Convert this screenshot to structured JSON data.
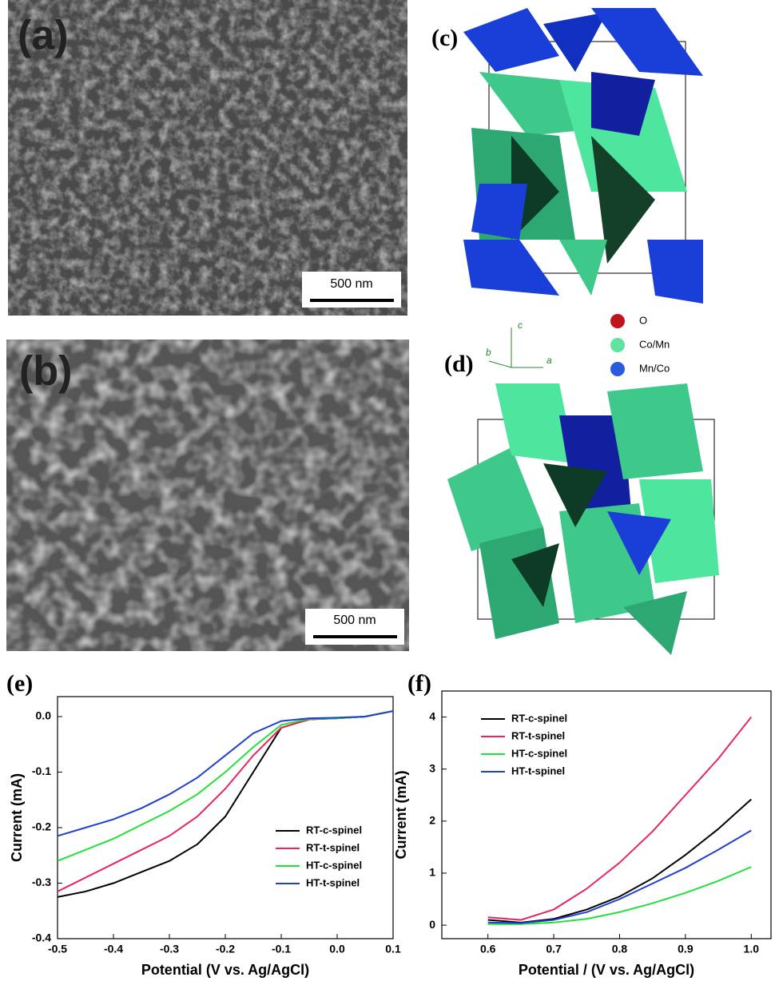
{
  "panels": {
    "a": {
      "label": "(a)",
      "scale_bar": "500 nm"
    },
    "b": {
      "label": "(b)",
      "scale_bar": "500 nm"
    },
    "c": {
      "label": "(c)"
    },
    "d": {
      "label": "(d)"
    },
    "atoms": [
      "O",
      "Co/Mn",
      "Mn/Co"
    ],
    "axes": [
      "c",
      "b",
      "a"
    ]
  },
  "chart_data": [
    {
      "type": "line",
      "panel_label": "(e)",
      "xlabel": "Potential (V vs. Ag/AgCl)",
      "ylabel": "Current (mA)",
      "x": [
        -0.5,
        -0.45,
        -0.4,
        -0.35,
        -0.3,
        -0.25,
        -0.2,
        -0.15,
        -0.1,
        -0.05,
        0,
        0.05,
        0.1
      ],
      "xlim": [
        -0.5,
        0.1
      ],
      "xticks": [
        -0.5,
        -0.4,
        -0.3,
        -0.2,
        -0.1,
        {
          "value": 0,
          "label": "0.0"
        },
        0.1
      ],
      "ylim": [
        -0.4,
        0.036
      ],
      "yticks": [
        -0.4,
        -0.3,
        -0.2,
        -0.1,
        {
          "value": 0,
          "label": "0.0"
        }
      ],
      "legend": "lower right",
      "series": [
        {
          "name": "RT-c-spinel",
          "color": "#000000",
          "values": [
            -0.325,
            -0.315,
            -0.3,
            -0.28,
            -0.26,
            -0.23,
            -0.18,
            -0.1,
            -0.02,
            -0.005,
            -0.003,
            0.0,
            0.01
          ]
        },
        {
          "name": "RT-t-spinel",
          "color": "#e8245e",
          "values": [
            -0.315,
            -0.29,
            -0.265,
            -0.24,
            -0.215,
            -0.18,
            -0.13,
            -0.07,
            -0.02,
            -0.005,
            -0.003,
            0.0,
            0.01
          ]
        },
        {
          "name": "HT-c-spinel",
          "color": "#22e03a",
          "values": [
            -0.26,
            -0.24,
            -0.22,
            -0.195,
            -0.17,
            -0.14,
            -0.1,
            -0.055,
            -0.015,
            -0.004,
            -0.003,
            0.0,
            0.01
          ]
        },
        {
          "name": "HT-t-spinel",
          "color": "#1f3fd0",
          "values": [
            -0.215,
            -0.2,
            -0.185,
            -0.165,
            -0.14,
            -0.11,
            -0.07,
            -0.03,
            -0.008,
            -0.003,
            -0.002,
            0.0,
            0.01
          ]
        }
      ]
    },
    {
      "type": "line",
      "panel_label": "(f)",
      "xlabel": "Potential / (V vs. Ag/AgCl)",
      "ylabel": "Current (mA)",
      "x": [
        0.6,
        0.65,
        0.7,
        0.75,
        0.8,
        0.85,
        0.9,
        0.95,
        1.0
      ],
      "xlim": [
        0.53,
        1.03
      ],
      "xticks": [
        0.6,
        0.7,
        0.8,
        0.9,
        {
          "value": 1.0,
          "label": "1.0"
        }
      ],
      "ylim": [
        -0.26,
        4.5
      ],
      "yticks": [
        0,
        1,
        2,
        3,
        4
      ],
      "legend": "upper left",
      "series": [
        {
          "name": "RT-c-spinel",
          "color": "#000000",
          "values": [
            0.1,
            0.05,
            0.12,
            0.3,
            0.55,
            0.9,
            1.35,
            1.85,
            2.42
          ]
        },
        {
          "name": "RT-t-spinel",
          "color": "#e8245e",
          "values": [
            0.15,
            0.1,
            0.3,
            0.7,
            1.2,
            1.8,
            2.5,
            3.2,
            4.0
          ]
        },
        {
          "name": "HT-c-spinel",
          "color": "#22e03a",
          "values": [
            0.02,
            0.02,
            0.05,
            0.12,
            0.25,
            0.42,
            0.62,
            0.85,
            1.12
          ]
        },
        {
          "name": "HT-t-spinel",
          "color": "#1f3fd0",
          "values": [
            0.05,
            0.04,
            0.1,
            0.25,
            0.5,
            0.8,
            1.1,
            1.45,
            1.82
          ]
        }
      ]
    }
  ]
}
